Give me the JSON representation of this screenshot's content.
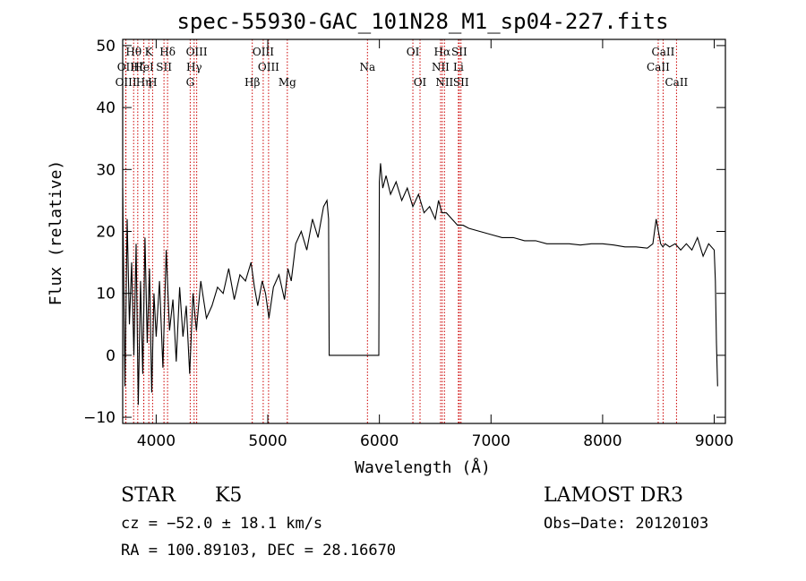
{
  "chart_data": {
    "type": "line",
    "title": "spec-55930-GAC_101N28_M1_sp04-227.fits",
    "xlabel": "Wavelength (Å)",
    "ylabel": "Flux (relative)",
    "xlim": [
      3700,
      9100
    ],
    "ylim": [
      -11,
      51
    ],
    "x_ticks": [
      4000,
      5000,
      6000,
      7000,
      8000,
      9000
    ],
    "y_ticks": [
      -10,
      0,
      10,
      20,
      30,
      40,
      50
    ],
    "series": [
      {
        "name": "flux",
        "x": [
          3700,
          3720,
          3740,
          3760,
          3780,
          3800,
          3820,
          3840,
          3860,
          3880,
          3900,
          3920,
          3940,
          3960,
          3980,
          4000,
          4030,
          4060,
          4090,
          4120,
          4150,
          4180,
          4210,
          4240,
          4270,
          4300,
          4330,
          4360,
          4400,
          4450,
          4500,
          4550,
          4600,
          4650,
          4700,
          4750,
          4800,
          4850,
          4880,
          4910,
          4950,
          4980,
          5010,
          5050,
          5100,
          5150,
          5180,
          5210,
          5250,
          5300,
          5350,
          5400,
          5450,
          5500,
          5530,
          5545,
          5550,
          5600,
          5700,
          5800,
          5900,
          5950,
          5995,
          6000,
          6010,
          6030,
          6060,
          6100,
          6150,
          6200,
          6250,
          6300,
          6350,
          6400,
          6450,
          6500,
          6530,
          6560,
          6600,
          6650,
          6700,
          6750,
          6800,
          6900,
          7000,
          7100,
          7200,
          7300,
          7400,
          7500,
          7600,
          7700,
          7800,
          7900,
          8000,
          8100,
          8200,
          8300,
          8400,
          8450,
          8480,
          8500,
          8520,
          8540,
          8560,
          8600,
          8650,
          8700,
          8750,
          8800,
          8850,
          8900,
          8950,
          9000,
          9010,
          9020,
          9030
        ],
        "y": [
          27,
          -5,
          22,
          5,
          15,
          0,
          18,
          -8,
          12,
          -3,
          19,
          2,
          14,
          -6,
          10,
          3,
          12,
          -2,
          17,
          4,
          9,
          -1,
          11,
          3,
          8,
          -3,
          10,
          4,
          12,
          6,
          8,
          11,
          10,
          14,
          9,
          13,
          12,
          15,
          11,
          8,
          12,
          10,
          6,
          11,
          13,
          9,
          14,
          12,
          18,
          20,
          17,
          22,
          19,
          24,
          25,
          22,
          0,
          0,
          0,
          0,
          0,
          0,
          0,
          28,
          31,
          27,
          29,
          26,
          28,
          25,
          27,
          24,
          26,
          23,
          24,
          22,
          25,
          23,
          23,
          22,
          21,
          21,
          20.5,
          20,
          19.5,
          19,
          19,
          18.5,
          18.5,
          18,
          18,
          18,
          17.8,
          18,
          18,
          17.8,
          17.5,
          17.5,
          17.3,
          18,
          22,
          20,
          18,
          17.5,
          18,
          17.5,
          18,
          17,
          18,
          17,
          19,
          16,
          18,
          17,
          12,
          2,
          -5
        ]
      }
    ],
    "lines": [
      {
        "label": "Hθ",
        "wl": 3798,
        "row": 1
      },
      {
        "label": "K",
        "wl": 3934,
        "row": 1
      },
      {
        "label": "Hδ",
        "wl": 4102,
        "row": 1
      },
      {
        "label": "OIII",
        "wl": 4363,
        "row": 1
      },
      {
        "label": "OIII",
        "wl": 4959,
        "row": 1
      },
      {
        "label": "OI",
        "wl": 6300,
        "row": 1
      },
      {
        "label": "Hα",
        "wl": 6563,
        "row": 1
      },
      {
        "label": "SII",
        "wl": 6716,
        "row": 1
      },
      {
        "label": "CaII",
        "wl": 8542,
        "row": 1
      },
      {
        "label": "OII",
        "wl": 3727,
        "row": 2
      },
      {
        "label": "Hζ",
        "wl": 3835,
        "row": 2
      },
      {
        "label": "HeI",
        "wl": 3889,
        "row": 2
      },
      {
        "label": "SII",
        "wl": 4070,
        "row": 2
      },
      {
        "label": "Hγ",
        "wl": 4340,
        "row": 2
      },
      {
        "label": "OIII",
        "wl": 5007,
        "row": 2
      },
      {
        "label": "NII",
        "wl": 6548,
        "row": 2
      },
      {
        "label": "Li",
        "wl": 6708,
        "row": 2
      },
      {
        "label": "CaII",
        "wl": 8498,
        "row": 2
      },
      {
        "label": "OIII",
        "wl": 3729,
        "row": 3
      },
      {
        "label": "Hη",
        "wl": 3889,
        "row": 3
      },
      {
        "label": "H",
        "wl": 3968,
        "row": 3
      },
      {
        "label": "G",
        "wl": 4305,
        "row": 3
      },
      {
        "label": "Hβ",
        "wl": 4861,
        "row": 3
      },
      {
        "label": "Mg",
        "wl": 5175,
        "row": 3
      },
      {
        "label": "Na",
        "wl": 5893,
        "row": 2
      },
      {
        "label": "OI",
        "wl": 6364,
        "row": 3
      },
      {
        "label": "NII",
        "wl": 6583,
        "row": 3
      },
      {
        "label": "SII",
        "wl": 6731,
        "row": 3
      },
      {
        "label": "CaII",
        "wl": 8662,
        "row": 3
      }
    ],
    "line_color": "#cc0000",
    "trace_color": "#000000"
  },
  "info": {
    "object_class": "STAR",
    "subclass": "K5",
    "survey": "LAMOST DR3",
    "cz": "cz = −52.0 ± 18.1 km/s",
    "obs_date": "Obs−Date: 20120103",
    "coords": "RA = 100.89103, DEC =  28.16670"
  }
}
